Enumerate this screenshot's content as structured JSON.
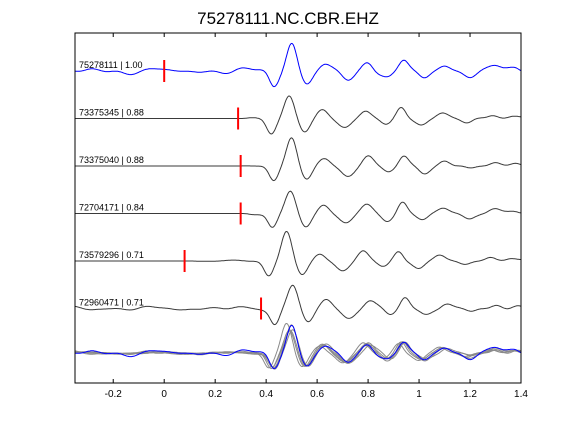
{
  "chart_data": {
    "type": "line",
    "title": "75278111.NC.CBR.EHZ",
    "xlabel": "",
    "ylabel": "",
    "xlim": [
      -0.35,
      1.4
    ],
    "xticks": [
      -0.2,
      0,
      0.2,
      0.4,
      0.6,
      0.8,
      1,
      1.2,
      1.4
    ],
    "xtick_labels": [
      "-0.2",
      "0",
      "0.2",
      "0.4",
      "0.6",
      "0.8",
      "1",
      "1.2",
      "1.4"
    ],
    "grid": false,
    "legend": "none",
    "colors": {
      "reference": "#0000ff",
      "trace": "#3a3a3a",
      "overlay": "#8a8a8a",
      "pick": "#ff0000",
      "axes": "#000000"
    },
    "series": [
      {
        "label": "75278111 | 1.00",
        "pick_time": 0.0,
        "shift": 0.0,
        "noise": 0.09,
        "flat_before_pick": false,
        "highlight": true
      },
      {
        "label": "73375345 | 0.88",
        "pick_time": 0.29,
        "shift": -0.01,
        "noise": 0.04,
        "flat_before_pick": true,
        "highlight": false
      },
      {
        "label": "73375040 | 0.88",
        "pick_time": 0.3,
        "shift": 0.0,
        "noise": 0.04,
        "flat_before_pick": true,
        "highlight": false
      },
      {
        "label": "72704171 | 0.84",
        "pick_time": 0.3,
        "shift": -0.005,
        "noise": 0.04,
        "flat_before_pick": true,
        "highlight": false
      },
      {
        "label": "73579296 | 0.71",
        "pick_time": 0.08,
        "shift": -0.02,
        "noise": 0.03,
        "flat_before_pick": true,
        "highlight": false
      },
      {
        "label": "72960471 | 0.71",
        "pick_time": 0.38,
        "shift": 0.005,
        "noise": 0.06,
        "flat_before_pick": false,
        "highlight": false
      }
    ],
    "wavelet": {
      "description_units": "time in seconds, amplitude relative",
      "components": [
        {
          "t": 0.43,
          "a": -0.55,
          "w": 0.025
        },
        {
          "t": 0.5,
          "a": 1.0,
          "w": 0.028
        },
        {
          "t": 0.56,
          "a": -0.55,
          "w": 0.03
        },
        {
          "t": 0.63,
          "a": 0.3,
          "w": 0.03
        },
        {
          "t": 0.72,
          "a": -0.35,
          "w": 0.035
        },
        {
          "t": 0.8,
          "a": 0.35,
          "w": 0.03
        },
        {
          "t": 0.88,
          "a": -0.25,
          "w": 0.03
        },
        {
          "t": 0.94,
          "a": 0.4,
          "w": 0.025
        },
        {
          "t": 1.02,
          "a": -0.25,
          "w": 0.03
        },
        {
          "t": 1.1,
          "a": 0.2,
          "w": 0.03
        },
        {
          "t": 1.2,
          "a": -0.15,
          "w": 0.03
        },
        {
          "t": 1.3,
          "a": 0.15,
          "w": 0.03
        },
        {
          "t": 1.38,
          "a": 0.1,
          "w": 0.03
        }
      ]
    }
  }
}
